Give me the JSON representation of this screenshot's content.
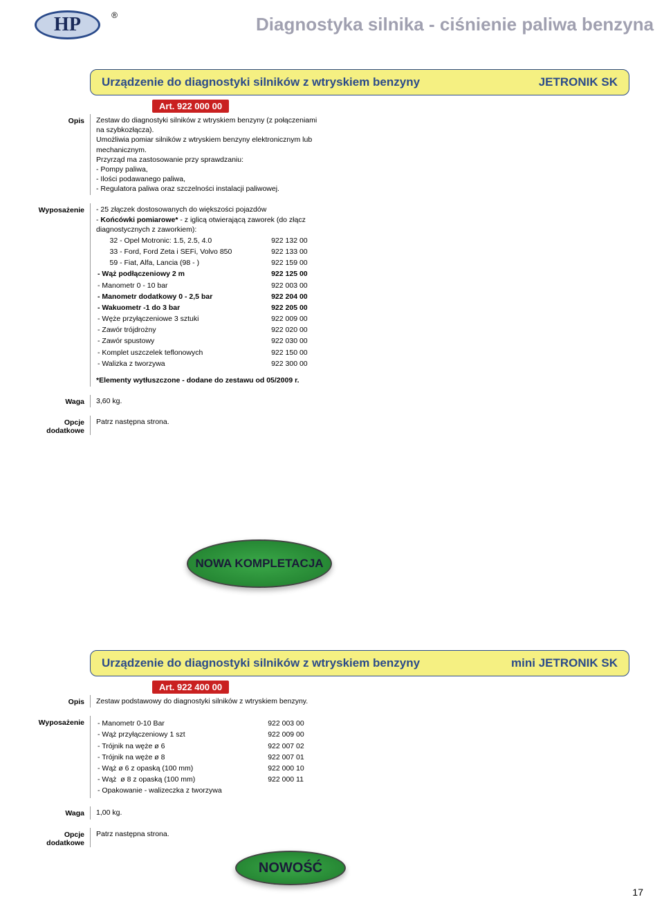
{
  "page": {
    "title": "Diagnostyka silnika - ciśnienie paliwa benzyna",
    "logo_text": "HP",
    "reg_mark": "®",
    "page_number": "17"
  },
  "colors": {
    "header_bg": "#f5f082",
    "header_border": "#2a4a8a",
    "art_bg": "#c92020",
    "badge_bg": "#3aa848",
    "title_gray": "#a0a0b0"
  },
  "labels": {
    "opis": "Opis",
    "wyposazenie": "Wyposażenie",
    "waga": "Waga",
    "opcje": "Opcje dodatkowe"
  },
  "product1": {
    "name": "Urządzenie do diagnostyki silników z wtryskiem benzyny",
    "code": "JETRONIK SK",
    "art": "Art. 922 000 00",
    "opis_p1": "Zestaw do diagnostyki silników z wtryskiem benzyny (z połączeniami na szybkozłącza).",
    "opis_p2": "Umożliwia pomiar silników z wtryskiem benzyny elektronicz­nym lub mechanicznym.",
    "opis_p3": "Przyrząd ma zastosowanie przy sprawdzaniu:",
    "opis_l1": "- Pompy paliwa,",
    "opis_l2": "- Ilości podawanego paliwa,",
    "opis_l3": "- Regulatora paliwa oraz szczelności instalacji paliwowej.",
    "wyp_intro1": "- 25 złączek dostosowanych do większości pojazdów",
    "wyp_intro2": "- Końcówki pomiarowe* - z iglicą otwierającą zaworek (do złącz diagnostycznych z zaworkiem):",
    "items": [
      {
        "name": "      32 - Opel Motronic: 1.5, 2.5, 4.0",
        "num": "922 132 00"
      },
      {
        "name": "      33 - Ford, Ford Zeta i SEFi, Volvo 850",
        "num": "922 133 00"
      },
      {
        "name": "      59 - Fiat, Alfa, Lancia (98 - )",
        "num": "922 159 00"
      },
      {
        "name": "- Wąż podłączeniowy 2 m",
        "num": "922 125 00"
      },
      {
        "name": "- Manometr 0 - 10 bar",
        "num": "922 003 00"
      },
      {
        "name": "- Manometr dodatkowy 0 - 2,5 bar",
        "num": "922 204 00"
      },
      {
        "name": "- Wakuometr -1 do 3 bar",
        "num": "922 205 00"
      },
      {
        "name": "- Węże przyłączeniowe 3 sztuki",
        "num": "922 009 00"
      },
      {
        "name": "- Zawór trójdrożny",
        "num": "922 020 00"
      },
      {
        "name": "- Zawór spustowy",
        "num": "922 030 00"
      },
      {
        "name": "- Komplet uszczelek teflonowych",
        "num": "922 150 00"
      },
      {
        "name": "- Walizka z tworzywa",
        "num": "922 300 00"
      }
    ],
    "bold_rows": [
      3,
      5,
      6
    ],
    "note": "*Elementy wytłuszczone - dodane do zestawu od 05/2009 r.",
    "waga": "3,60 kg.",
    "opcje": "Patrz następna strona.",
    "badge": "NOWA KOMPLETACJA"
  },
  "product2": {
    "name": "Urządzenie do diagnostyki silników z wtryskiem benzyny",
    "code": "mini JETRONIK SK",
    "art": "Art. 922 400 00",
    "opis": "Zestaw podstawowy do diagnostyki silników z wtryskiem benzyny.",
    "items": [
      {
        "name": "- Manometr 0-10 Bar",
        "num": "922 003 00"
      },
      {
        "name": "- Wąż przyłączeniowy 1 szt",
        "num": "922 009 00"
      },
      {
        "name": "- Trójnik na węże ø 6",
        "num": "922 007 02"
      },
      {
        "name": "- Trójnik na węże ø 8",
        "num": "922 007 01"
      },
      {
        "name": "- Wąż ø 6 z opaską (100 mm)",
        "num": "922 000 10"
      },
      {
        "name": "- Wąż  ø 8 z opaską (100 mm)",
        "num": "922 000 11"
      },
      {
        "name": "- Opakowanie - walizeczka z tworzywa",
        "num": ""
      }
    ],
    "waga": "1,00 kg.",
    "opcje": "Patrz następna strona.",
    "badge": "NOWOŚĆ"
  }
}
